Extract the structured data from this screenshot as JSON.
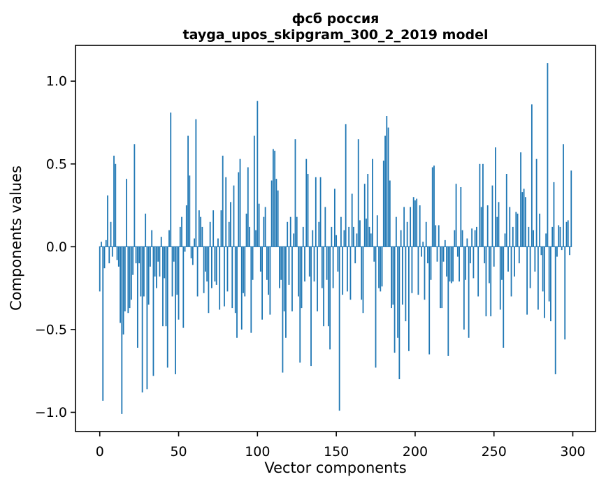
{
  "figure": {
    "background": "#ffffff",
    "text_color": "#000000"
  },
  "chart_data": {
    "type": "bar",
    "title_line1": "фсб россия",
    "title_line2": "tayga_upos_skipgram_300_2_2019 model",
    "xlabel": "Vector components",
    "ylabel": "Components values",
    "bar_color": "#1f77b4",
    "axis_color": "#000000",
    "grid": false,
    "legend": null,
    "n_bars": 300,
    "x_start": 0,
    "bar_width_data": 0.8,
    "xlim": [
      -15.4,
      314.4
    ],
    "ylim": [
      -1.116,
      1.216
    ],
    "xticks": [
      {
        "v": 0,
        "label": "0"
      },
      {
        "v": 50,
        "label": "50"
      },
      {
        "v": 100,
        "label": "100"
      },
      {
        "v": 150,
        "label": "150"
      },
      {
        "v": 200,
        "label": "200"
      },
      {
        "v": 250,
        "label": "250"
      },
      {
        "v": 300,
        "label": "300"
      }
    ],
    "yticks": [
      {
        "v": 1.0,
        "label": "1.0"
      },
      {
        "v": 0.5,
        "label": "0.5"
      },
      {
        "v": 0.0,
        "label": "0.0"
      },
      {
        "v": -0.5,
        "label": "−0.5"
      },
      {
        "v": -1.0,
        "label": "−1.0"
      }
    ],
    "values": [
      -0.27,
      0.03,
      -0.93,
      -0.13,
      0.04,
      0.31,
      -0.1,
      0.15,
      -0.06,
      0.55,
      0.5,
      -0.08,
      -0.12,
      -0.46,
      -1.01,
      -0.53,
      -0.39,
      0.41,
      -0.4,
      -0.37,
      -0.32,
      -0.17,
      0.62,
      -0.1,
      -0.61,
      -0.1,
      -0.3,
      -0.88,
      -0.3,
      0.2,
      -0.86,
      -0.35,
      -0.12,
      0.1,
      -0.78,
      -0.18,
      -0.25,
      -0.09,
      -0.18,
      0.06,
      -0.48,
      -0.19,
      -0.48,
      -0.73,
      0.1,
      0.81,
      -0.3,
      -0.09,
      -0.77,
      -0.29,
      -0.44,
      0.12,
      0.18,
      -0.49,
      -0.03,
      0.25,
      0.67,
      0.43,
      -0.07,
      -0.11,
      0.05,
      0.77,
      -0.3,
      0.22,
      0.18,
      0.12,
      -0.28,
      -0.15,
      -0.21,
      -0.4,
      0.15,
      -0.25,
      0.22,
      -0.21,
      -0.23,
      0.05,
      -0.38,
      0.22,
      0.55,
      -0.36,
      0.42,
      -0.27,
      0.15,
      0.27,
      -0.37,
      0.37,
      -0.4,
      -0.55,
      0.45,
      0.53,
      -0.5,
      -0.28,
      -0.3,
      0.2,
      0.48,
      0.12,
      -0.52,
      -0.2,
      0.67,
      0.1,
      0.88,
      0.26,
      -0.15,
      -0.44,
      0.18,
      0.24,
      -0.2,
      -0.29,
      -0.41,
      0.4,
      0.59,
      0.58,
      0.41,
      0.34,
      -0.25,
      -0.2,
      -0.76,
      -0.39,
      -0.55,
      0.15,
      -0.23,
      0.18,
      -0.39,
      0.08,
      0.65,
      0.18,
      -0.3,
      -0.7,
      -0.37,
      0.12,
      -0.21,
      0.53,
      0.44,
      -0.18,
      -0.72,
      0.1,
      -0.21,
      0.42,
      -0.39,
      0.15,
      0.42,
      -0.25,
      -0.48,
      0.24,
      -0.2,
      -0.48,
      -0.62,
      0.12,
      -0.25,
      0.35,
      0.07,
      -0.15,
      -0.99,
      0.18,
      -0.29,
      0.1,
      0.74,
      -0.27,
      0.12,
      -0.32,
      0.32,
      0.12,
      -0.1,
      0.08,
      0.65,
      0.16,
      -0.32,
      -0.4,
      0.38,
      0.17,
      0.44,
      0.12,
      0.08,
      0.53,
      -0.09,
      -0.73,
      0.19,
      -0.25,
      -0.27,
      -0.24,
      0.52,
      0.67,
      0.79,
      0.72,
      0.4,
      -0.37,
      -0.35,
      -0.64,
      0.18,
      -0.55,
      -0.8,
      0.1,
      -0.35,
      0.24,
      -0.45,
      0.15,
      -0.63,
      0.24,
      -0.28,
      0.3,
      0.28,
      0.29,
      -0.29,
      0.25,
      -0.06,
      0.03,
      -0.32,
      0.15,
      -0.1,
      -0.65,
      -0.2,
      0.48,
      0.49,
      0.13,
      -0.09,
      0.13,
      -0.37,
      -0.37,
      -0.09,
      0.04,
      -0.18,
      -0.66,
      -0.21,
      -0.22,
      -0.21,
      0.1,
      0.38,
      -0.06,
      -0.21,
      0.36,
      0.1,
      -0.5,
      -0.2,
      0.05,
      -0.55,
      -0.1,
      0.11,
      -0.19,
      0.1,
      0.12,
      -0.3,
      0.5,
      0.24,
      0.5,
      -0.1,
      -0.42,
      0.25,
      -0.22,
      -0.42,
      0.37,
      -0.12,
      0.6,
      0.18,
      0.27,
      -0.38,
      -0.2,
      -0.61,
      0.08,
      0.44,
      -0.15,
      0.24,
      -0.3,
      0.12,
      -0.18,
      0.21,
      0.2,
      -0.1,
      0.57,
      0.33,
      0.35,
      0.3,
      -0.41,
      0.12,
      -0.25,
      0.86,
      0.1,
      -0.15,
      0.53,
      -0.38,
      0.2,
      -0.05,
      -0.27,
      -0.43,
      0.08,
      1.11,
      -0.33,
      -0.45,
      0.12,
      0.39,
      -0.77,
      -0.06,
      0.13,
      0.12,
      -0.02,
      0.62,
      -0.56,
      0.15,
      0.16,
      -0.05,
      0.46
    ]
  }
}
